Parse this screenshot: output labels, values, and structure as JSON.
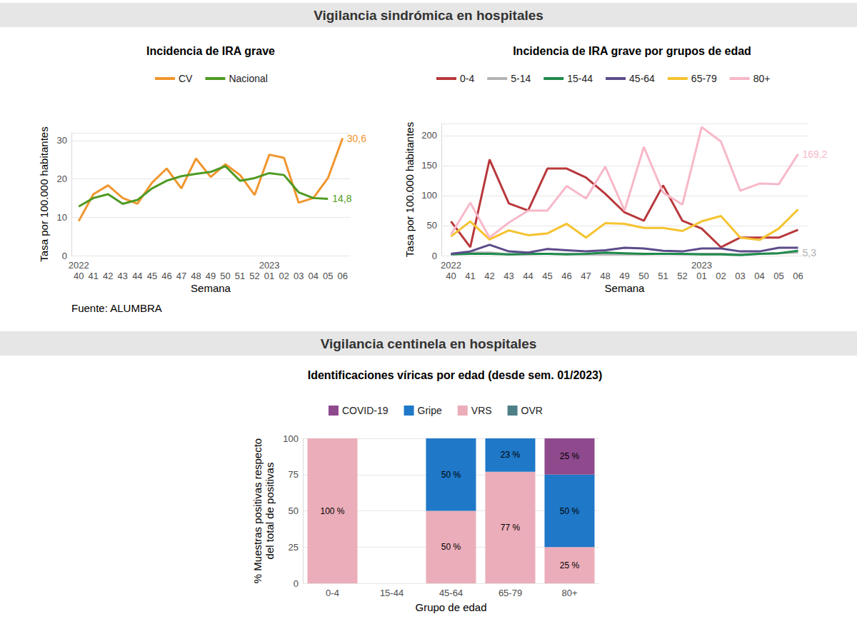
{
  "sections": [
    "Vigilancia sindrómica en hospitales",
    "Vigilancia centinela en hospitales"
  ],
  "chart_data": [
    {
      "type": "line",
      "title": "Incidencia de IRA grave",
      "x_label": "Semana",
      "y_label": "Tasa por 100.000 habitantes",
      "source": "Fuente: ALUMBRA",
      "categories": [
        "40",
        "41",
        "42",
        "43",
        "44",
        "45",
        "46",
        "47",
        "48",
        "49",
        "50",
        "51",
        "52",
        "01",
        "02",
        "03",
        "04",
        "05",
        "06"
      ],
      "year_labels": [
        {
          "x": "40",
          "label": "2022"
        },
        {
          "x": "01",
          "label": "2023"
        }
      ],
      "series": [
        {
          "name": "CV",
          "color": "#F0962E",
          "values": [
            9,
            16,
            18.3,
            15,
            13.5,
            19,
            22.7,
            17.5,
            25.3,
            20.5,
            23.8,
            21,
            15.8,
            26.3,
            25.5,
            13.8,
            15,
            20.2,
            30.6
          ],
          "value_labels": [
            null,
            null,
            null,
            null,
            null,
            null,
            null,
            null,
            null,
            null,
            null,
            null,
            null,
            null,
            null,
            null,
            null,
            null,
            "30,6"
          ]
        },
        {
          "name": "Nacional",
          "color": "#4E9A22",
          "values": [
            12.8,
            15,
            16,
            13.5,
            14.5,
            17.5,
            19.5,
            20.7,
            21.3,
            21.8,
            23.3,
            19.5,
            20.2,
            21.5,
            21,
            16.5,
            15,
            14.8,
            null
          ],
          "value_labels": [
            null,
            null,
            null,
            null,
            null,
            null,
            null,
            null,
            null,
            null,
            null,
            null,
            null,
            null,
            null,
            null,
            null,
            "14,8",
            null
          ]
        }
      ],
      "ylim": [
        0,
        32
      ],
      "yticks": [
        0,
        10,
        20,
        30
      ],
      "grid": true,
      "legend": "top"
    },
    {
      "type": "line",
      "title": "Incidencia de IRA grave por grupos de edad",
      "x_label": "Semana",
      "y_label": "Tasa por 100.000 habitantes",
      "categories": [
        "40",
        "41",
        "42",
        "43",
        "44",
        "45",
        "46",
        "47",
        "48",
        "49",
        "50",
        "51",
        "52",
        "01",
        "02",
        "03",
        "04",
        "05",
        "06"
      ],
      "year_labels": [
        {
          "x": "40",
          "label": "2022"
        },
        {
          "x": "01",
          "label": "2023"
        }
      ],
      "series": [
        {
          "name": "0-4",
          "color": "#B8383C",
          "values": [
            57,
            14,
            160,
            87,
            75,
            145,
            145,
            130,
            103,
            72,
            58,
            117,
            58,
            45,
            14,
            30,
            30,
            30,
            43
          ]
        },
        {
          "name": "5-14",
          "color": "#B3B3B3",
          "values": [
            3,
            5,
            5,
            2,
            2,
            3,
            3,
            2,
            2,
            2,
            2,
            3,
            2,
            3,
            3,
            2,
            3,
            4,
            5.3
          ],
          "value_labels": [
            null,
            null,
            null,
            null,
            null,
            null,
            null,
            null,
            null,
            null,
            null,
            null,
            null,
            null,
            null,
            null,
            null,
            null,
            "5,3"
          ]
        },
        {
          "name": "15-44",
          "color": "#1E8A4C",
          "values": [
            2,
            3,
            3,
            2,
            3,
            3,
            2,
            3,
            5,
            4,
            3,
            3,
            3,
            2,
            2,
            1,
            3,
            4,
            8
          ]
        },
        {
          "name": "45-64",
          "color": "#5C4B8A",
          "values": [
            3,
            7,
            18,
            7,
            5,
            11,
            9,
            7,
            9,
            13,
            12,
            8,
            7,
            12,
            12,
            7,
            7,
            13,
            13
          ]
        },
        {
          "name": "65-79",
          "color": "#F5C330",
          "values": [
            32,
            57,
            27,
            42,
            34,
            37,
            53,
            30,
            54,
            53,
            46,
            46,
            41,
            57,
            66,
            30,
            26,
            45,
            77
          ]
        },
        {
          "name": "80+",
          "color": "#F7B8C8",
          "values": [
            35,
            88,
            30,
            55,
            75,
            75,
            116,
            95,
            148,
            75,
            181,
            105,
            85,
            214,
            190,
            108,
            120,
            119,
            169.2
          ],
          "value_labels": [
            null,
            null,
            null,
            null,
            null,
            null,
            null,
            null,
            null,
            null,
            null,
            null,
            null,
            null,
            null,
            null,
            null,
            null,
            "169,2"
          ]
        }
      ],
      "ylim": [
        0,
        220
      ],
      "yticks": [
        0,
        50,
        100,
        150,
        200
      ],
      "grid": true,
      "legend": "top"
    },
    {
      "type": "bar",
      "title": "Identificaciones víricas por edad (desde sem. 01/2023)",
      "x_label": "Grupo de edad",
      "y_label": "% Muestras positivas respecto\ndel total de positivas",
      "categories": [
        "0-4",
        "15-44",
        "45-64",
        "65-79",
        "80+"
      ],
      "series": [
        {
          "name": "COVID-19",
          "color": "#8E4A8D",
          "values": [
            null,
            null,
            null,
            null,
            25
          ],
          "value_labels": [
            null,
            null,
            null,
            null,
            "25 %"
          ]
        },
        {
          "name": "Gripe",
          "color": "#1F78C8",
          "values": [
            null,
            null,
            50,
            23,
            50
          ],
          "value_labels": [
            null,
            null,
            "50 %",
            "23 %",
            "50 %"
          ]
        },
        {
          "name": "VRS",
          "color": "#EBADB9",
          "values": [
            100,
            null,
            50,
            77,
            25
          ],
          "value_labels": [
            "100 %",
            null,
            "50 %",
            "77 %",
            "25 %"
          ]
        },
        {
          "name": "OVR",
          "color": "#4F8088",
          "values": [
            null,
            null,
            null,
            null,
            null
          ]
        }
      ],
      "stacked": true,
      "data_labels": true,
      "ylim": [
        0,
        100
      ],
      "yticks": [
        0,
        25,
        50,
        75,
        100
      ],
      "grid": true,
      "legend": "top"
    }
  ]
}
